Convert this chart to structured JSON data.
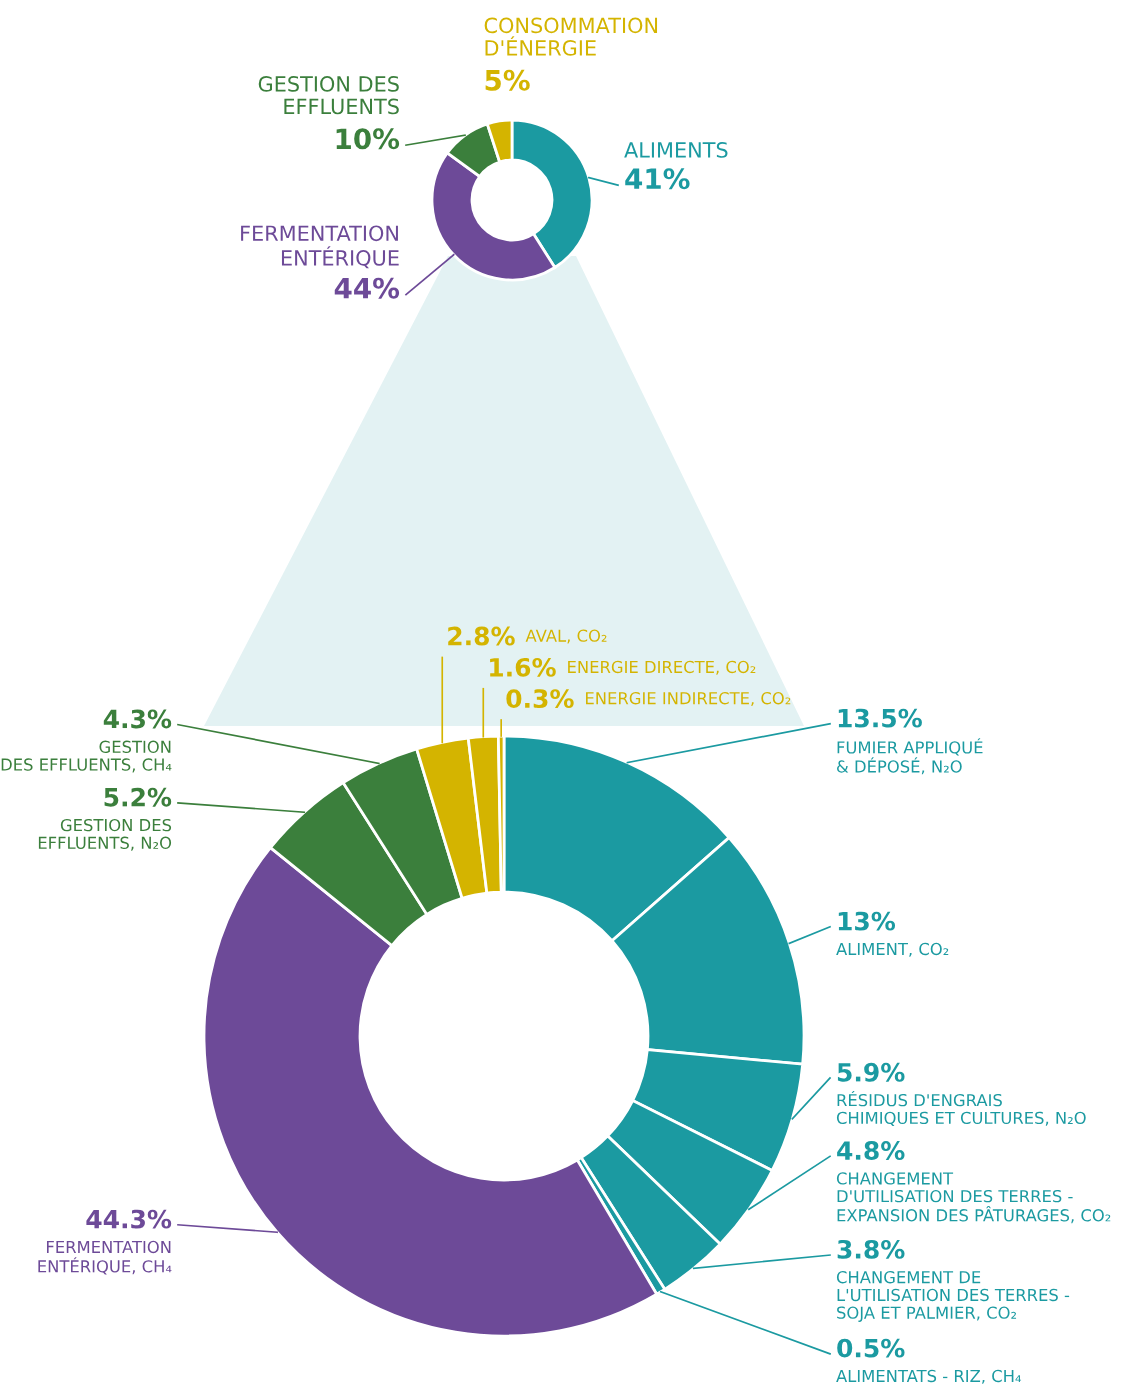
{
  "chart_data": [
    {
      "type": "donut",
      "categories": [
        "ALIMENTS",
        "FERMENTATION\nENTÉRIQUE",
        "GESTION DES\nEFFLUENTS",
        "CONSOMMATION\nD'ÉNERGIE"
      ],
      "values": [
        41,
        44,
        10,
        5
      ],
      "value_labels": [
        "41%",
        "44%",
        "10%",
        "5%"
      ],
      "colors": [
        "#1b9aa1",
        "#6d4a98",
        "#3b7f3c",
        "#d4b400"
      ]
    },
    {
      "type": "donut",
      "categories": [
        "FUMIER APPLIQUÉ\n& DÉPOSÉ, N₂O",
        "ALIMENT, CO₂",
        "RÉSIDUS D'ENGRAIS\nCHIMIQUES ET CULTURES, N₂O",
        "CHANGEMENT\nD'UTILISATION DES TERRES -\nEXPANSION DES PÂTURAGES, CO₂",
        "CHANGEMENT DE\nL'UTILISATION DES TERRES -\nSOJA ET PALMIER, CO₂",
        "ALIMENTATS - RIZ, CH₄",
        "FERMENTATION\nENTÉRIQUE, CH₄",
        "GESTION DES\nEFFLUENTS, N₂O",
        "GESTION\nDES EFFLUENTS, CH₄",
        "AVAL, CO₂",
        "ENERGIE DIRECTE, CO₂",
        "ENERGIE INDIRECTE, CO₂"
      ],
      "values": [
        13.5,
        13,
        5.9,
        4.8,
        3.8,
        0.5,
        44.3,
        5.2,
        4.3,
        2.8,
        1.6,
        0.3
      ],
      "value_labels": [
        "13.5%",
        "13%",
        "5.9%",
        "4.8%",
        "3.8%",
        "0.5%",
        "44.3%",
        "5.2%",
        "4.3%",
        "2.8%",
        "1.6%",
        "0.3%"
      ],
      "colors": [
        "#1b9aa1",
        "#1b9aa1",
        "#1b9aa1",
        "#1b9aa1",
        "#1b9aa1",
        "#1b9aa1",
        "#6d4a98",
        "#3b7f3c",
        "#3b7f3c",
        "#d4b400",
        "#d4b400",
        "#d4b400"
      ]
    }
  ]
}
